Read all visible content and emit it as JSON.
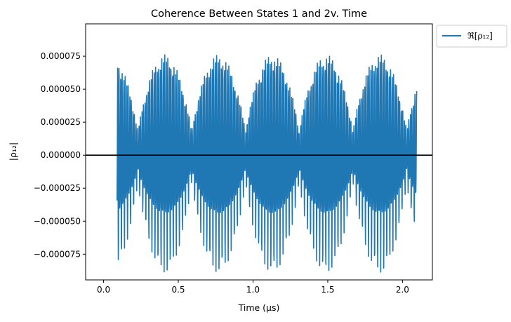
{
  "chart_data": {
    "type": "line",
    "title": "Coherence Between States 1 and 2v. Time",
    "xlabel": "Time (μs)",
    "ylabel": "|ρ₁₂|",
    "xlim": [
      -0.12,
      2.2
    ],
    "ylim": [
      -9.45e-05,
      9.95e-05
    ],
    "xticks": [
      0.0,
      0.5,
      1.0,
      1.5,
      2.0
    ],
    "xtick_labels": [
      "0.0",
      "0.5",
      "1.0",
      "1.5",
      "2.0"
    ],
    "yticks": [
      -7.5e-05,
      -5e-05,
      -2.5e-05,
      0.0,
      2.5e-05,
      5e-05,
      7.5e-05
    ],
    "ytick_labels": [
      "−0.000075",
      "−0.000050",
      "−0.000025",
      "0.000000",
      "0.000025",
      "0.000050",
      "0.000075"
    ],
    "grid": false,
    "legend": {
      "placement": "outside-top-right"
    },
    "hline": {
      "y": 0.0,
      "color": "#000000"
    },
    "series": [
      {
        "name": "ℜ[ρ₁₂]",
        "color": "#1f77b4",
        "x_range": [
          0.09,
          2.095
        ],
        "peak_amplitude": 8.55e-05,
        "oscillations_per_microsecond": 98,
        "beat_cycles_per_microsecond": 2.78,
        "envelope_floor_fraction": 0.22,
        "values": []
      }
    ]
  }
}
